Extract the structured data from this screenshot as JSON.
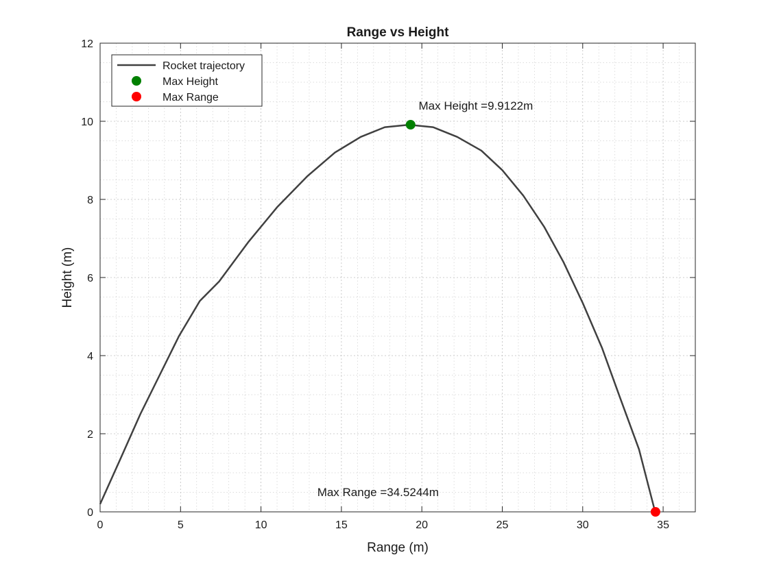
{
  "chart_data": {
    "type": "line",
    "title": "Range vs Height",
    "xlabel": "Range (m)",
    "ylabel": "Height (m)",
    "xlim": [
      0,
      37
    ],
    "ylim": [
      0,
      12
    ],
    "xticks": [
      0,
      5,
      10,
      15,
      20,
      25,
      30,
      35
    ],
    "yticks": [
      0,
      2,
      4,
      6,
      8,
      10,
      12
    ],
    "grid": true,
    "minor_grid": true,
    "legend_position": "top-left",
    "series": [
      {
        "name": "Rocket trajectory",
        "color": "#404040",
        "x": [
          0.0,
          1.2,
          2.5,
          3.7,
          4.9,
          6.2,
          7.4,
          9.2,
          11.0,
          12.9,
          14.6,
          16.2,
          17.7,
          19.2,
          20.7,
          22.2,
          23.7,
          25.0,
          26.3,
          27.6,
          28.8,
          30.0,
          31.2,
          32.3,
          33.5,
          34.5
        ],
        "y": [
          0.2,
          1.3,
          2.5,
          3.5,
          4.5,
          5.4,
          5.9,
          6.9,
          7.8,
          8.6,
          9.2,
          9.6,
          9.85,
          9.91,
          9.85,
          9.6,
          9.25,
          8.75,
          8.1,
          7.3,
          6.4,
          5.35,
          4.2,
          2.95,
          1.6,
          0.0
        ]
      },
      {
        "name": "Max Height",
        "color": "#008000",
        "marker": "circle",
        "x": [
          19.3
        ],
        "y": [
          9.9122
        ]
      },
      {
        "name": "Max Range",
        "color": "#ff0000",
        "marker": "circle",
        "x": [
          34.5244
        ],
        "y": [
          0
        ]
      }
    ],
    "annotations": [
      {
        "text": "Max Height =9.9122m",
        "x": 19.8,
        "y": 10.3
      },
      {
        "text": "Max Range =34.5244m",
        "x": 13.5,
        "y": 0.4
      }
    ]
  }
}
